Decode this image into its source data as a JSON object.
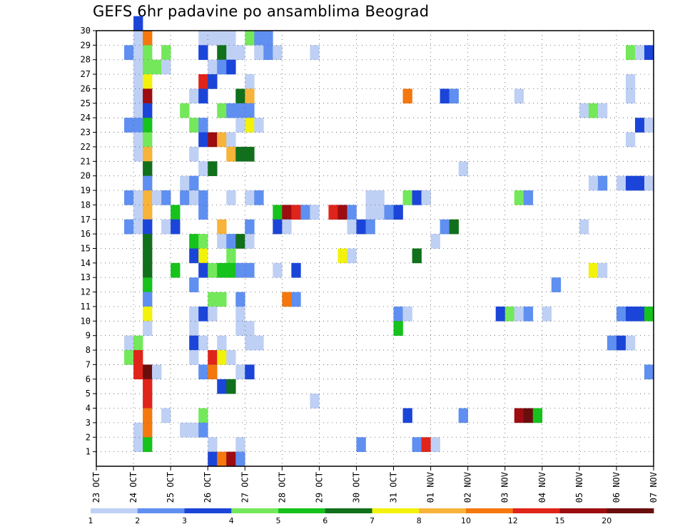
{
  "chart_data": {
    "type": "heatmap",
    "title": "GEFS 6hr padavine po ansamblima Beograd",
    "x_tick_labels": [
      "23 OCT",
      "24 OCT",
      "25 OCT",
      "26 OCT",
      "27 OCT",
      "28 OCT",
      "29 OCT",
      "30 OCT",
      "31 OCT",
      "01 NOV",
      "02 NOV",
      "03 NOV",
      "04 NOV",
      "05 NOV",
      "06 NOV",
      "07 NOV"
    ],
    "y_tick_labels": [
      "1",
      "2",
      "3",
      "4",
      "5",
      "6",
      "7",
      "8",
      "9",
      "10",
      "11",
      "12",
      "13",
      "14",
      "15",
      "16",
      "17",
      "18",
      "19",
      "20",
      "21",
      "22",
      "23",
      "24",
      "25",
      "26",
      "27",
      "28",
      "29",
      "30"
    ],
    "grid": true,
    "colorbar": {
      "position": "bottom",
      "tick_labels": [
        "1",
        "2",
        "3",
        "4",
        "5",
        "6",
        "7",
        "8",
        "10",
        "12",
        "15",
        "20"
      ],
      "colors": [
        "#bfd0f5",
        "#5f8ff0",
        "#1b45d9",
        "#74e85b",
        "#16c21c",
        "#11701c",
        "#f2f20b",
        "#f8b33a",
        "#f4780e",
        "#e0241a",
        "#9c0c10",
        "#6a0d0d"
      ]
    },
    "x_range": [
      0,
      60
    ],
    "y_range": [
      0,
      30
    ],
    "cells": [
      [
        4,
        30,
        3
      ],
      [
        4,
        29,
        1
      ],
      [
        5,
        29,
        9
      ],
      [
        11,
        29,
        1
      ],
      [
        12,
        29,
        1
      ],
      [
        13,
        29,
        1
      ],
      [
        14,
        29,
        1
      ],
      [
        16,
        29,
        4
      ],
      [
        17,
        29,
        2
      ],
      [
        18,
        29,
        2
      ],
      [
        3,
        28,
        2
      ],
      [
        4,
        28,
        1
      ],
      [
        5,
        28,
        4
      ],
      [
        7,
        28,
        4
      ],
      [
        11,
        28,
        3
      ],
      [
        13,
        28,
        6
      ],
      [
        14,
        28,
        1
      ],
      [
        15,
        28,
        1
      ],
      [
        17,
        28,
        1
      ],
      [
        18,
        28,
        2
      ],
      [
        19,
        28,
        1
      ],
      [
        23,
        28,
        1
      ],
      [
        57,
        28,
        4
      ],
      [
        58,
        28,
        1
      ],
      [
        59,
        28,
        3
      ],
      [
        4,
        27,
        1
      ],
      [
        5,
        27,
        4
      ],
      [
        6,
        27,
        4
      ],
      [
        7,
        27,
        1
      ],
      [
        12,
        27,
        1
      ],
      [
        13,
        27,
        2
      ],
      [
        14,
        27,
        3
      ],
      [
        4,
        26,
        1
      ],
      [
        5,
        26,
        7
      ],
      [
        11,
        26,
        10
      ],
      [
        12,
        26,
        3
      ],
      [
        16,
        26,
        1
      ],
      [
        57,
        26,
        1
      ],
      [
        4,
        25,
        1
      ],
      [
        5,
        25,
        11
      ],
      [
        10,
        25,
        1
      ],
      [
        11,
        25,
        3
      ],
      [
        15,
        25,
        6
      ],
      [
        16,
        25,
        8
      ],
      [
        33,
        25,
        9
      ],
      [
        37,
        25,
        3
      ],
      [
        38,
        25,
        2
      ],
      [
        45,
        25,
        1
      ],
      [
        57,
        25,
        1
      ],
      [
        4,
        24,
        1
      ],
      [
        5,
        24,
        3
      ],
      [
        9,
        24,
        4
      ],
      [
        13,
        24,
        4
      ],
      [
        14,
        24,
        2
      ],
      [
        15,
        24,
        2
      ],
      [
        16,
        24,
        2
      ],
      [
        52,
        24,
        1
      ],
      [
        53,
        24,
        4
      ],
      [
        54,
        24,
        1
      ],
      [
        3,
        23,
        2
      ],
      [
        4,
        23,
        2
      ],
      [
        5,
        23,
        5
      ],
      [
        10,
        23,
        4
      ],
      [
        11,
        23,
        2
      ],
      [
        15,
        23,
        1
      ],
      [
        16,
        23,
        7
      ],
      [
        17,
        23,
        1
      ],
      [
        58,
        23,
        3
      ],
      [
        59,
        23,
        1
      ],
      [
        4,
        22,
        1
      ],
      [
        5,
        22,
        4
      ],
      [
        11,
        22,
        3
      ],
      [
        12,
        22,
        11
      ],
      [
        13,
        22,
        8
      ],
      [
        14,
        22,
        1
      ],
      [
        57,
        22,
        1
      ],
      [
        4,
        21,
        1
      ],
      [
        5,
        21,
        8
      ],
      [
        10,
        21,
        1
      ],
      [
        14,
        21,
        8
      ],
      [
        15,
        21,
        6
      ],
      [
        16,
        21,
        6
      ],
      [
        5,
        20,
        6
      ],
      [
        11,
        20,
        1
      ],
      [
        12,
        20,
        6
      ],
      [
        39,
        20,
        1
      ],
      [
        5,
        19,
        2
      ],
      [
        9,
        19,
        1
      ],
      [
        10,
        19,
        2
      ],
      [
        53,
        19,
        1
      ],
      [
        54,
        19,
        2
      ],
      [
        56,
        19,
        1
      ],
      [
        57,
        19,
        3
      ],
      [
        58,
        19,
        3
      ],
      [
        59,
        19,
        1
      ],
      [
        3,
        18,
        2
      ],
      [
        4,
        18,
        1
      ],
      [
        5,
        18,
        8
      ],
      [
        6,
        18,
        1
      ],
      [
        7,
        18,
        2
      ],
      [
        9,
        18,
        2
      ],
      [
        10,
        18,
        1
      ],
      [
        11,
        18,
        2
      ],
      [
        14,
        18,
        1
      ],
      [
        16,
        18,
        1
      ],
      [
        17,
        18,
        2
      ],
      [
        29,
        18,
        1
      ],
      [
        30,
        18,
        1
      ],
      [
        33,
        18,
        4
      ],
      [
        34,
        18,
        3
      ],
      [
        35,
        18,
        1
      ],
      [
        45,
        18,
        4
      ],
      [
        46,
        18,
        2
      ],
      [
        4,
        17,
        1
      ],
      [
        5,
        17,
        8
      ],
      [
        8,
        17,
        5
      ],
      [
        11,
        17,
        2
      ],
      [
        19,
        17,
        5
      ],
      [
        20,
        17,
        11
      ],
      [
        21,
        17,
        10
      ],
      [
        22,
        17,
        2
      ],
      [
        23,
        17,
        1
      ],
      [
        25,
        17,
        10
      ],
      [
        26,
        17,
        11
      ],
      [
        27,
        17,
        2
      ],
      [
        29,
        17,
        1
      ],
      [
        30,
        17,
        1
      ],
      [
        31,
        17,
        2
      ],
      [
        32,
        17,
        3
      ],
      [
        3,
        16,
        2
      ],
      [
        4,
        16,
        1
      ],
      [
        5,
        16,
        3
      ],
      [
        7,
        16,
        1
      ],
      [
        8,
        16,
        3
      ],
      [
        13,
        16,
        8
      ],
      [
        16,
        16,
        2
      ],
      [
        19,
        16,
        3
      ],
      [
        20,
        16,
        1
      ],
      [
        27,
        16,
        1
      ],
      [
        28,
        16,
        3
      ],
      [
        29,
        16,
        2
      ],
      [
        37,
        16,
        2
      ],
      [
        38,
        16,
        6
      ],
      [
        52,
        16,
        1
      ],
      [
        5,
        15,
        6
      ],
      [
        10,
        15,
        5
      ],
      [
        11,
        15,
        4
      ],
      [
        13,
        15,
        1
      ],
      [
        14,
        15,
        2
      ],
      [
        15,
        15,
        6
      ],
      [
        16,
        15,
        1
      ],
      [
        36,
        15,
        1
      ],
      [
        5,
        14,
        6
      ],
      [
        10,
        14,
        3
      ],
      [
        11,
        14,
        7
      ],
      [
        14,
        14,
        4
      ],
      [
        26,
        14,
        7
      ],
      [
        27,
        14,
        1
      ],
      [
        34,
        14,
        6
      ],
      [
        5,
        13,
        6
      ],
      [
        8,
        13,
        5
      ],
      [
        11,
        13,
        3
      ],
      [
        12,
        13,
        4
      ],
      [
        13,
        13,
        5
      ],
      [
        14,
        13,
        5
      ],
      [
        15,
        13,
        2
      ],
      [
        16,
        13,
        2
      ],
      [
        19,
        13,
        1
      ],
      [
        21,
        13,
        3
      ],
      [
        53,
        13,
        7
      ],
      [
        54,
        13,
        1
      ],
      [
        5,
        12,
        5
      ],
      [
        10,
        12,
        2
      ],
      [
        49,
        12,
        2
      ],
      [
        5,
        11,
        2
      ],
      [
        12,
        11,
        4
      ],
      [
        13,
        11,
        4
      ],
      [
        15,
        11,
        2
      ],
      [
        20,
        11,
        9
      ],
      [
        21,
        11,
        2
      ],
      [
        5,
        10,
        7
      ],
      [
        10,
        10,
        1
      ],
      [
        11,
        10,
        3
      ],
      [
        12,
        10,
        1
      ],
      [
        15,
        10,
        1
      ],
      [
        32,
        10,
        2
      ],
      [
        33,
        10,
        1
      ],
      [
        43,
        10,
        3
      ],
      [
        44,
        10,
        4
      ],
      [
        45,
        10,
        1
      ],
      [
        46,
        10,
        2
      ],
      [
        48,
        10,
        1
      ],
      [
        56,
        10,
        2
      ],
      [
        57,
        10,
        3
      ],
      [
        58,
        10,
        3
      ],
      [
        59,
        10,
        5
      ],
      [
        5,
        9,
        1
      ],
      [
        10,
        9,
        1
      ],
      [
        15,
        9,
        1
      ],
      [
        16,
        9,
        1
      ],
      [
        32,
        9,
        5
      ],
      [
        3,
        8,
        1
      ],
      [
        4,
        8,
        4
      ],
      [
        10,
        8,
        3
      ],
      [
        11,
        8,
        1
      ],
      [
        13,
        8,
        1
      ],
      [
        16,
        8,
        1
      ],
      [
        17,
        8,
        1
      ],
      [
        55,
        8,
        2
      ],
      [
        56,
        8,
        3
      ],
      [
        57,
        8,
        1
      ],
      [
        3,
        7,
        4
      ],
      [
        4,
        7,
        10
      ],
      [
        10,
        7,
        1
      ],
      [
        12,
        7,
        10
      ],
      [
        13,
        7,
        7
      ],
      [
        14,
        7,
        1
      ],
      [
        4,
        6,
        10
      ],
      [
        5,
        6,
        12
      ],
      [
        6,
        6,
        1
      ],
      [
        11,
        6,
        2
      ],
      [
        12,
        6,
        9
      ],
      [
        15,
        6,
        1
      ],
      [
        16,
        6,
        3
      ],
      [
        59,
        6,
        2
      ],
      [
        5,
        5,
        10
      ],
      [
        13,
        5,
        3
      ],
      [
        14,
        5,
        6
      ],
      [
        5,
        4,
        10
      ],
      [
        23,
        4,
        1
      ],
      [
        5,
        3,
        9
      ],
      [
        7,
        3,
        1
      ],
      [
        11,
        3,
        4
      ],
      [
        33,
        3,
        3
      ],
      [
        39,
        3,
        2
      ],
      [
        45,
        3,
        11
      ],
      [
        46,
        3,
        12
      ],
      [
        47,
        3,
        5
      ],
      [
        4,
        2,
        1
      ],
      [
        5,
        2,
        9
      ],
      [
        9,
        2,
        1
      ],
      [
        10,
        2,
        1
      ],
      [
        11,
        2,
        2
      ],
      [
        4,
        1,
        1
      ],
      [
        5,
        1,
        5
      ],
      [
        12,
        1,
        1
      ],
      [
        15,
        1,
        1
      ],
      [
        28,
        1,
        2
      ],
      [
        34,
        1,
        2
      ],
      [
        35,
        1,
        10
      ],
      [
        36,
        1,
        1
      ],
      [
        12,
        0,
        3
      ],
      [
        13,
        0,
        9
      ],
      [
        14,
        0,
        11
      ],
      [
        15,
        0,
        2
      ]
    ]
  }
}
